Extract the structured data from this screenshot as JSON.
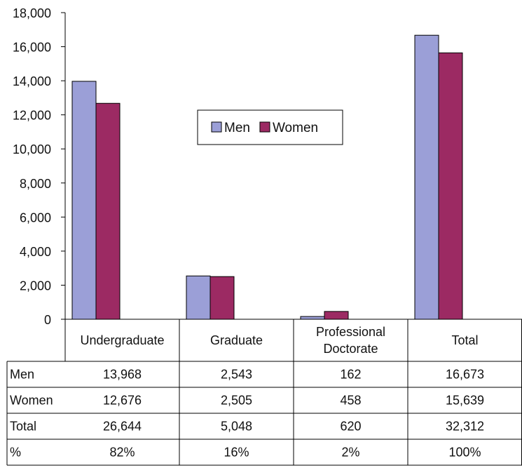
{
  "chart_data": {
    "type": "bar",
    "categories": [
      "Undergraduate",
      "Graduate",
      "Professional Doctorate",
      "Total"
    ],
    "category_labels": [
      [
        "Undergraduate"
      ],
      [
        "Graduate"
      ],
      [
        "Professional",
        "Doctorate"
      ],
      [
        "Total"
      ]
    ],
    "series": [
      {
        "name": "Men",
        "color": "#9b9fd7",
        "values": [
          13968,
          2543,
          162,
          16673
        ]
      },
      {
        "name": "Women",
        "color": "#9c2a63",
        "values": [
          12676,
          2505,
          458,
          15639
        ]
      }
    ],
    "ylim": [
      0,
      18000
    ],
    "yticks": [
      "0",
      "2,000",
      "4,000",
      "6,000",
      "8,000",
      "10,000",
      "12,000",
      "14,000",
      "16,000",
      "18,000"
    ],
    "legend_position": "center",
    "grid": false,
    "table": {
      "rows": [
        {
          "label": "Men",
          "cells": [
            "13,968",
            "2,543",
            "162",
            "16,673"
          ]
        },
        {
          "label": "Women",
          "cells": [
            "12,676",
            "2,505",
            "458",
            "15,639"
          ]
        },
        {
          "label": "Total",
          "cells": [
            "26,644",
            "5,048",
            "620",
            "32,312"
          ]
        },
        {
          "label": "%",
          "cells": [
            "82%",
            "16%",
            "2%",
            "100%"
          ]
        }
      ]
    }
  }
}
